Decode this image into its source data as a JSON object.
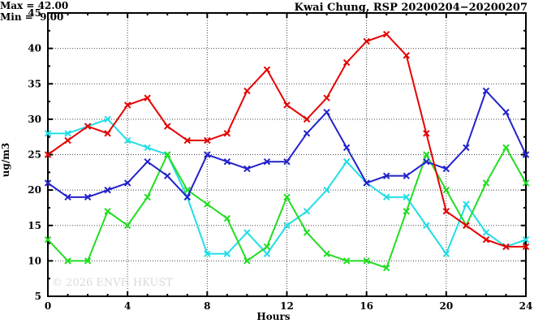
{
  "title": "Kwai Chung, RSP 20200204−20200207",
  "annotation": {
    "max_label": "Max = 42.00",
    "min_label": "Min =  9.00"
  },
  "watermark": "© 2026 ENVF, HKUST",
  "chart_data": {
    "type": "line",
    "title": "Kwai Chung, RSP 20200204−20200207",
    "xlabel": "Hours",
    "ylabel": "ug/m3",
    "xlim": [
      0,
      24
    ],
    "ylim": [
      5,
      45
    ],
    "xticks": [
      0,
      4,
      8,
      12,
      16,
      20,
      24
    ],
    "yticks": [
      5,
      10,
      15,
      20,
      25,
      30,
      35,
      40,
      45
    ],
    "grid": true,
    "legend": "none",
    "max_value": 42.0,
    "min_value": 9.0,
    "x": [
      0,
      1,
      2,
      3,
      4,
      5,
      6,
      7,
      8,
      9,
      10,
      11,
      12,
      13,
      14,
      15,
      16,
      17,
      18,
      19,
      20,
      21,
      22,
      23,
      24
    ],
    "series": [
      {
        "name": "cyan",
        "color": "#22dde6",
        "values": [
          28,
          28,
          29,
          30,
          27,
          26,
          25,
          19,
          11,
          11,
          14,
          11,
          15,
          17,
          20,
          24,
          21,
          19,
          19,
          15,
          11,
          18,
          14,
          12,
          13
        ]
      },
      {
        "name": "green",
        "color": "#22dd22",
        "values": [
          13,
          10,
          10,
          17,
          15,
          19,
          25,
          20,
          18,
          16,
          10,
          12,
          19,
          14,
          11,
          10,
          10,
          9,
          17,
          25,
          20,
          15,
          21,
          26,
          21
        ]
      },
      {
        "name": "blue",
        "color": "#2222cc",
        "values": [
          21,
          19,
          19,
          20,
          21,
          24,
          22,
          19,
          25,
          24,
          23,
          24,
          24,
          28,
          31,
          26,
          21,
          22,
          22,
          24,
          23,
          26,
          34,
          31,
          25
        ]
      },
      {
        "name": "red",
        "color": "#e60000",
        "values": [
          25,
          27,
          29,
          28,
          32,
          33,
          29,
          27,
          27,
          28,
          34,
          37,
          32,
          30,
          33,
          38,
          41,
          42,
          39,
          28,
          17,
          15,
          13,
          12,
          12
        ]
      }
    ]
  }
}
